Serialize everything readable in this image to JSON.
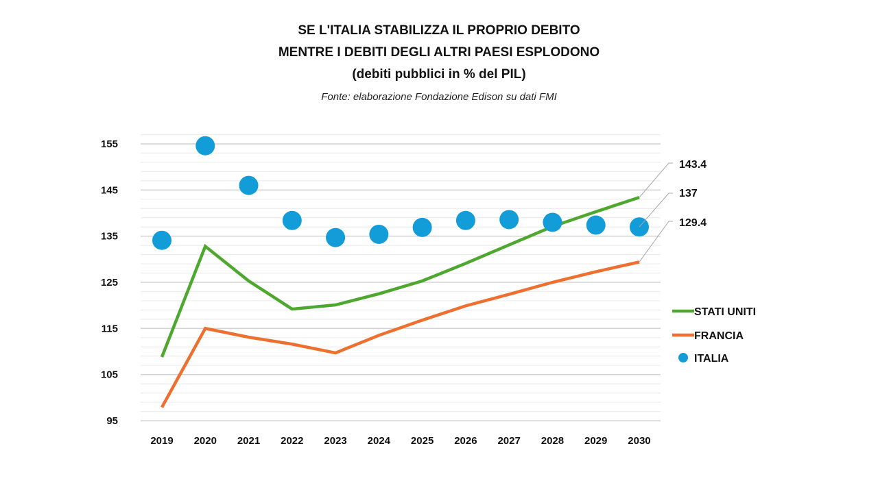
{
  "chart_data": {
    "type": "line",
    "title": [
      "SE L'ITALIA STABILIZZA IL PROPRIO DEBITO",
      "MENTRE I DEBITI DEGLI ALTRI PAESI ESPLODONO",
      "(debiti pubblici in % del PIL)"
    ],
    "subtitle": "Fonte: elaborazione Fondazione Edison su dati FMI",
    "xlabel": "",
    "ylabel": "",
    "categories": [
      "2019",
      "2020",
      "2021",
      "2022",
      "2023",
      "2024",
      "2025",
      "2026",
      "2027",
      "2028",
      "2029",
      "2030"
    ],
    "ylim": [
      95,
      157
    ],
    "yticks": [
      "95",
      "105",
      "115",
      "125",
      "135",
      "145",
      "155"
    ],
    "grid": true,
    "legend_position": "right",
    "series": [
      {
        "name": "STATI UNITI",
        "kind": "line",
        "color": "#4ea72e",
        "values": [
          108.8,
          132.8,
          125.3,
          119.2,
          120.1,
          122.5,
          125.3,
          129.1,
          133.1,
          137.1,
          140.3,
          143.4
        ],
        "end_label": "143.4"
      },
      {
        "name": "FRANCIA",
        "kind": "line",
        "color": "#ed7030",
        "values": [
          97.9,
          115.0,
          113.1,
          111.6,
          109.7,
          113.5,
          116.8,
          119.9,
          122.4,
          125.0,
          127.3,
          129.4
        ],
        "end_label": "129.4"
      },
      {
        "name": "ITALIA",
        "kind": "scatter",
        "color": "#129cd8",
        "values": [
          134.1,
          154.6,
          146.0,
          138.4,
          134.7,
          135.4,
          136.9,
          138.4,
          138.6,
          138.0,
          137.4,
          137.0
        ],
        "end_label": "137"
      }
    ]
  }
}
